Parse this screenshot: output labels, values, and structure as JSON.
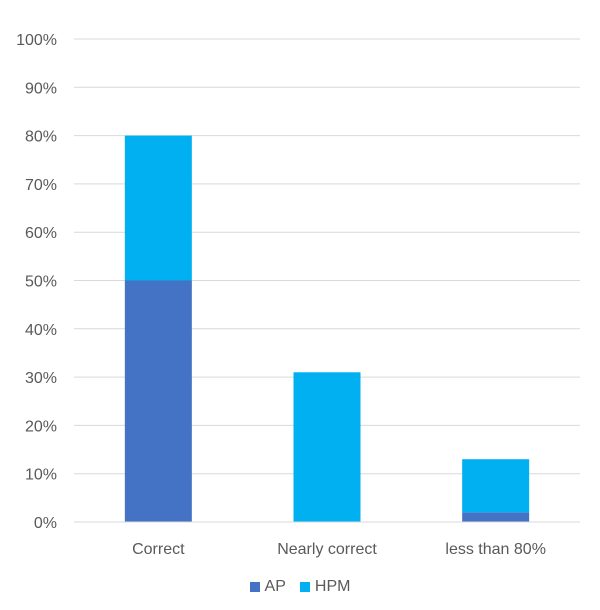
{
  "chart_data": {
    "type": "bar",
    "stacked": true,
    "categories": [
      "Correct",
      "Nearly correct",
      "less than 80%"
    ],
    "series": [
      {
        "name": "AP",
        "values": [
          50,
          0,
          2
        ],
        "color": "#4472C4"
      },
      {
        "name": "HPM",
        "values": [
          30,
          31,
          11
        ],
        "color": "#00B0F0"
      }
    ],
    "title": "",
    "xlabel": "",
    "ylabel": "",
    "ylim": [
      0,
      100
    ],
    "y_ticks": [
      "0%",
      "10%",
      "20%",
      "30%",
      "40%",
      "50%",
      "60%",
      "70%",
      "80%",
      "90%",
      "100%"
    ],
    "grid": true,
    "legend_position": "bottom"
  }
}
